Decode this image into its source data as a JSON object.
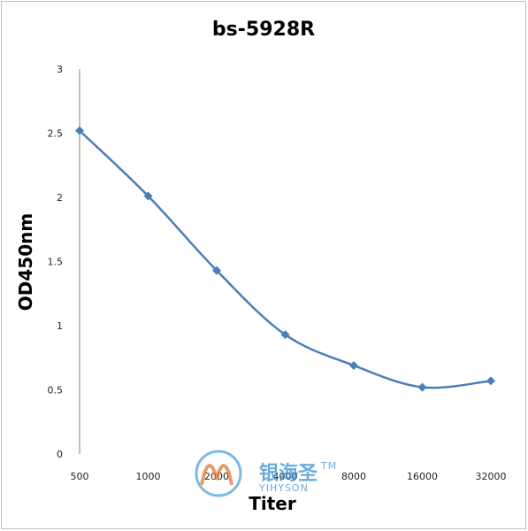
{
  "chart_data": {
    "type": "line",
    "title": "bs-5928R",
    "xlabel": "Titer",
    "ylabel": "OD450nm",
    "categories": [
      "500",
      "1000",
      "2000",
      "4000",
      "8000",
      "16000",
      "32000"
    ],
    "series": [
      {
        "values": [
          2.52,
          2.01,
          1.43,
          0.93,
          0.69,
          0.52,
          0.57
        ],
        "color": "#4a7ebb"
      }
    ],
    "ylim": [
      0,
      3
    ],
    "yticks": [
      "0",
      "0.5",
      "1",
      "1.5",
      "2",
      "2.5",
      "3"
    ],
    "grid": false,
    "legend": "none"
  },
  "watermark": {
    "brand": "银海圣",
    "trademark": "TM",
    "sub": "YIHYSON"
  }
}
